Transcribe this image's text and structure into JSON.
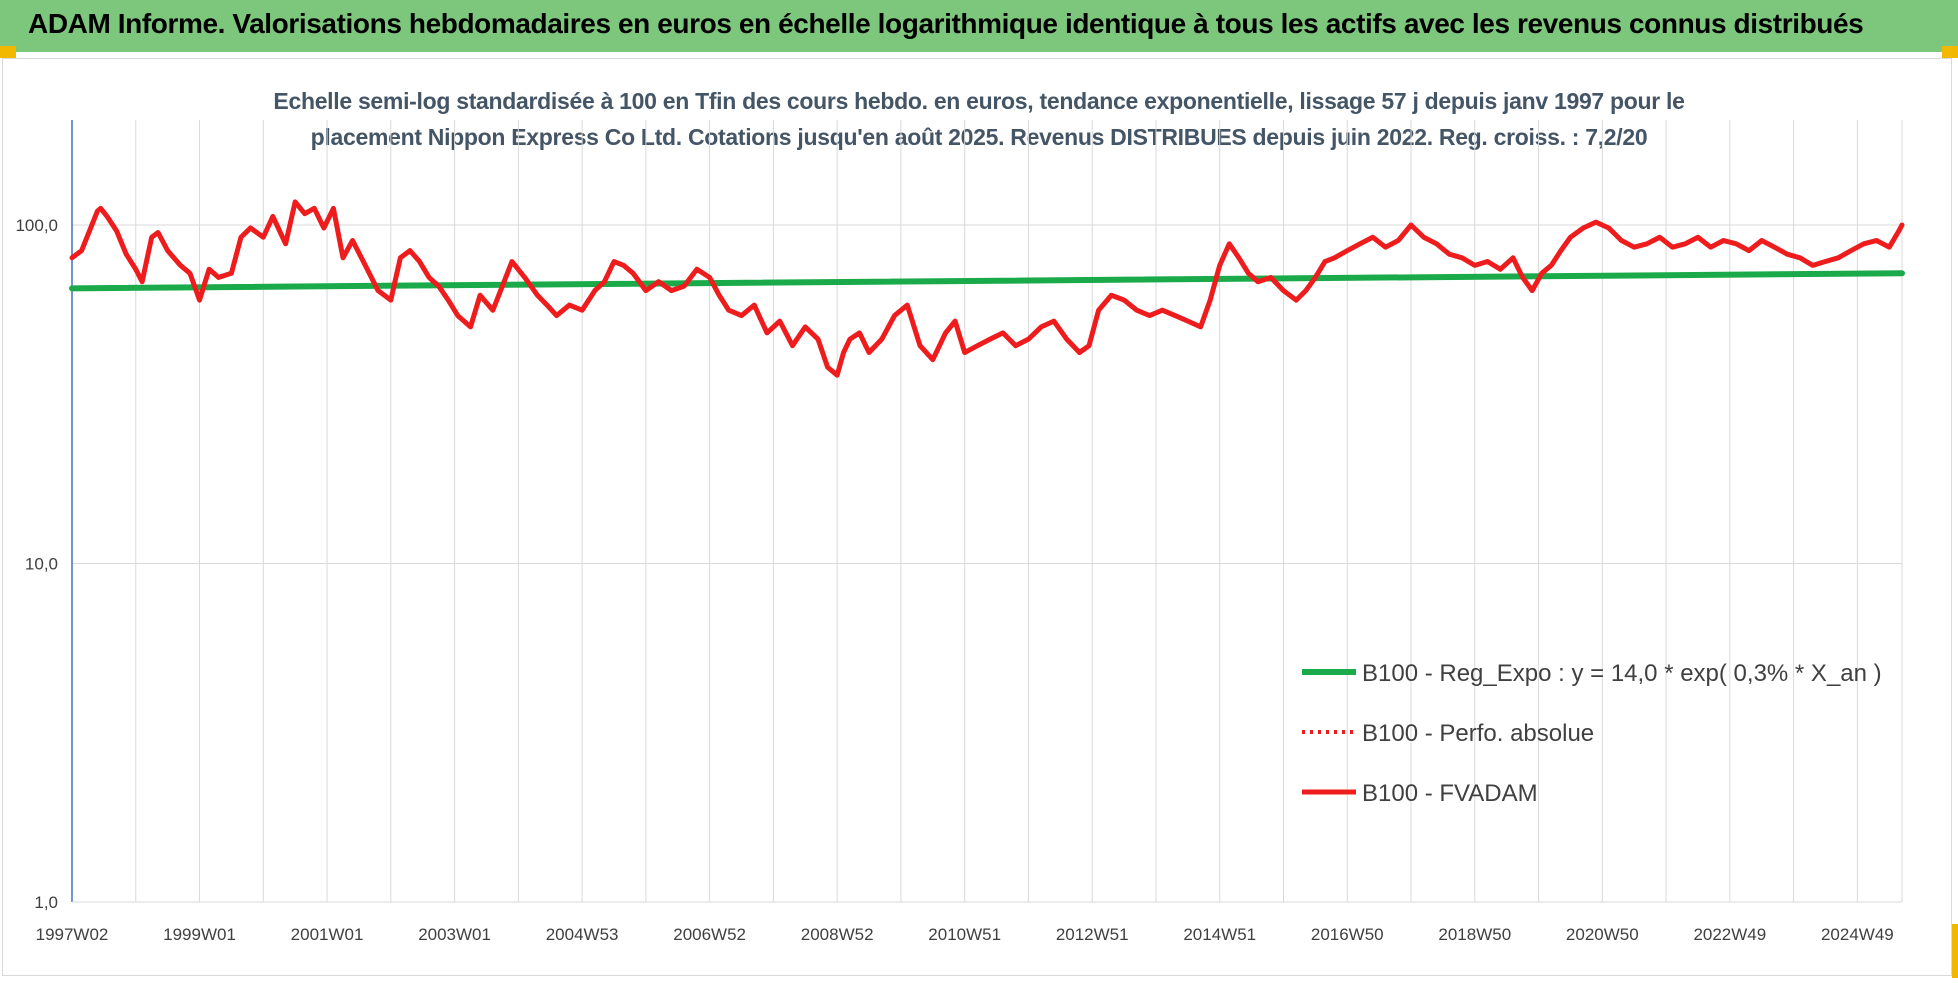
{
  "header": {
    "title": "ADAM Informe. Valorisations hebdomadaires en euros en échelle logarithmique identique à tous les actifs avec les revenus connus distribués"
  },
  "colors": {
    "header_bg": "#7dc77d",
    "trend": "#1aaa4a",
    "fvadam": "#ee1c1c",
    "perfo": "#ee1c1c",
    "grid": "#d9d9d9",
    "accent": "#f2b800"
  },
  "chart_data": {
    "type": "line",
    "title_line1": "Echelle semi-log standardisée à 100 en Tfin des cours hebdo. en euros, tendance exponentielle, lissage 57 j depuis janv 1997 pour le",
    "title_line2": "placement Nippon Express Co Ltd. Cotations jusqu'en août 2025. Revenus DISTRIBUES depuis juin 2022. Reg. croiss. : 7,2/20",
    "y_scale": "log",
    "ylim": [
      1,
      200
    ],
    "y_ticks": [
      {
        "value": 1,
        "label": "1,0"
      },
      {
        "value": 10,
        "label": "10,0"
      },
      {
        "value": 100,
        "label": "100,0"
      }
    ],
    "xlim": [
      1997.0,
      2025.7
    ],
    "x_ticks": [
      {
        "value": 1997.0,
        "label": "1997W02"
      },
      {
        "value": 1999.0,
        "label": "1999W01"
      },
      {
        "value": 2001.0,
        "label": "2001W01"
      },
      {
        "value": 2003.0,
        "label": "2003W01"
      },
      {
        "value": 2005.0,
        "label": "2004W53"
      },
      {
        "value": 2007.0,
        "label": "2006W52"
      },
      {
        "value": 2009.0,
        "label": "2008W52"
      },
      {
        "value": 2011.0,
        "label": "2010W51"
      },
      {
        "value": 2013.0,
        "label": "2012W51"
      },
      {
        "value": 2015.0,
        "label": "2014W51"
      },
      {
        "value": 2017.0,
        "label": "2016W50"
      },
      {
        "value": 2019.0,
        "label": "2018W50"
      },
      {
        "value": 2021.0,
        "label": "2020W50"
      },
      {
        "value": 2023.0,
        "label": "2022W49"
      },
      {
        "value": 2025.0,
        "label": "2024W49"
      }
    ],
    "grid": "vertical",
    "legend_position": "bottom-right",
    "legend": [
      {
        "name": "B100 - Reg_Expo : y = 14,0 * exp( 0,3% *  X_an )",
        "style": "solid-green"
      },
      {
        "name": "B100 - Perfo. absolue",
        "style": "dotted-red"
      },
      {
        "name": "B100 - FVADAM",
        "style": "solid-red"
      }
    ],
    "series": [
      {
        "name": "B100 - Reg_Expo : y = 14,0 * exp( 0,3% *  X_an )",
        "x": [
          1997.0,
          2025.7
        ],
        "y": [
          65,
          72
        ]
      },
      {
        "name": "B100 - FVADAM",
        "x": [
          1997.0,
          1997.15,
          1997.4,
          1997.45,
          1997.55,
          1997.7,
          1997.85,
          1998.0,
          1998.1,
          1998.25,
          1998.35,
          1998.5,
          1998.7,
          1998.85,
          1999.0,
          1999.15,
          1999.3,
          1999.5,
          1999.65,
          1999.8,
          2000.0,
          2000.15,
          2000.35,
          2000.5,
          2000.65,
          2000.8,
          2000.95,
          2001.1,
          2001.25,
          2001.4,
          2001.6,
          2001.8,
          2002.0,
          2002.15,
          2002.3,
          2002.45,
          2002.6,
          2002.75,
          2002.9,
          2003.05,
          2003.25,
          2003.4,
          2003.6,
          2003.75,
          2003.9,
          2004.1,
          2004.3,
          2004.45,
          2004.6,
          2004.8,
          2005.0,
          2005.2,
          2005.35,
          2005.5,
          2005.65,
          2005.8,
          2006.0,
          2006.2,
          2006.4,
          2006.6,
          2006.8,
          2007.0,
          2007.15,
          2007.3,
          2007.5,
          2007.7,
          2007.9,
          2008.1,
          2008.3,
          2008.5,
          2008.7,
          2008.85,
          2009.0,
          2009.1,
          2009.2,
          2009.35,
          2009.5,
          2009.7,
          2009.9,
          2010.1,
          2010.3,
          2010.5,
          2010.7,
          2010.85,
          2011.0,
          2011.2,
          2011.4,
          2011.6,
          2011.8,
          2012.0,
          2012.2,
          2012.4,
          2012.6,
          2012.8,
          2012.95,
          2013.1,
          2013.3,
          2013.5,
          2013.7,
          2013.9,
          2014.1,
          2014.3,
          2014.5,
          2014.7,
          2014.85,
          2015.0,
          2015.15,
          2015.3,
          2015.45,
          2015.6,
          2015.8,
          2016.0,
          2016.2,
          2016.35,
          2016.5,
          2016.65,
          2016.8,
          2017.0,
          2017.2,
          2017.4,
          2017.6,
          2017.8,
          2018.0,
          2018.2,
          2018.4,
          2018.6,
          2018.8,
          2019.0,
          2019.2,
          2019.4,
          2019.6,
          2019.75,
          2019.9,
          2020.05,
          2020.2,
          2020.35,
          2020.5,
          2020.7,
          2020.9,
          2021.1,
          2021.3,
          2021.5,
          2021.7,
          2021.9,
          2022.1,
          2022.3,
          2022.5,
          2022.7,
          2022.9,
          2023.1,
          2023.3,
          2023.5,
          2023.7,
          2023.9,
          2024.1,
          2024.3,
          2024.5,
          2024.7,
          2024.9,
          2025.1,
          2025.3,
          2025.5,
          2025.65,
          2025.7
        ],
        "y": [
          80,
          84,
          110,
          112,
          106,
          96,
          82,
          74,
          68,
          92,
          95,
          84,
          76,
          72,
          60,
          74,
          70,
          72,
          92,
          98,
          92,
          106,
          88,
          117,
          108,
          112,
          98,
          112,
          80,
          90,
          76,
          64,
          60,
          80,
          84,
          78,
          70,
          66,
          60,
          54,
          50,
          62,
          56,
          66,
          78,
          70,
          62,
          58,
          54,
          58,
          56,
          64,
          68,
          78,
          76,
          72,
          64,
          68,
          64,
          66,
          74,
          70,
          62,
          56,
          54,
          58,
          48,
          52,
          44,
          50,
          46,
          38,
          36,
          42,
          46,
          48,
          42,
          46,
          54,
          58,
          44,
          40,
          48,
          52,
          42,
          44,
          46,
          48,
          44,
          46,
          50,
          52,
          46,
          42,
          44,
          56,
          62,
          60,
          56,
          54,
          56,
          54,
          52,
          50,
          60,
          76,
          88,
          80,
          72,
          68,
          70,
          64,
          60,
          64,
          70,
          78,
          80,
          84,
          88,
          92,
          86,
          90,
          100,
          92,
          88,
          82,
          80,
          76,
          78,
          74,
          80,
          70,
          64,
          72,
          76,
          84,
          92,
          98,
          102,
          98,
          90,
          86,
          88,
          92,
          86,
          88,
          92,
          86,
          90,
          88,
          84,
          90,
          86,
          82,
          80,
          76,
          78,
          80,
          84,
          88,
          90,
          86,
          96,
          100
        ]
      }
    ]
  }
}
